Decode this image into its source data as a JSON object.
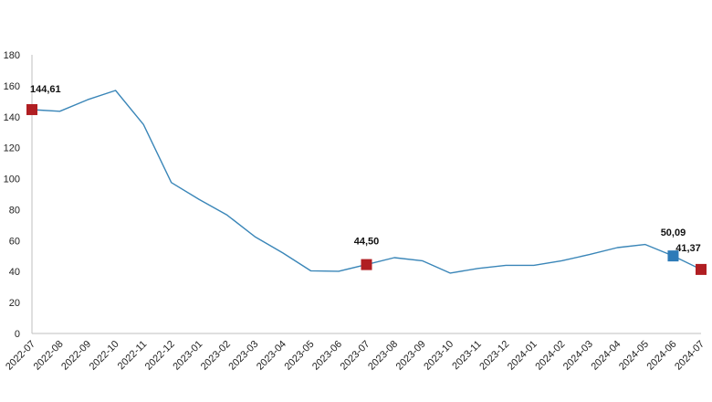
{
  "chart_data": {
    "type": "line",
    "title": "",
    "xlabel": "",
    "ylabel": "",
    "ylim": [
      0,
      180
    ],
    "yticks": [
      0,
      20,
      40,
      60,
      80,
      100,
      120,
      140,
      160,
      180
    ],
    "grid": false,
    "legend": "none",
    "categories": [
      "2022-07",
      "2022-08",
      "2022-09",
      "2022-10",
      "2022-11",
      "2022-12",
      "2023-01",
      "2023-02",
      "2023-03",
      "2023-04",
      "2023-05",
      "2023-06",
      "2023-07",
      "2023-08",
      "2023-09",
      "2023-10",
      "2023-11",
      "2023-12",
      "2024-01",
      "2024-02",
      "2024-03",
      "2024-04",
      "2024-05",
      "2024-06",
      "2024-07"
    ],
    "series": [
      {
        "values": [
          144.61,
          143.5,
          151.0,
          157.0,
          135.0,
          97.5,
          86.5,
          76.5,
          62.5,
          52.0,
          40.5,
          40.2,
          44.5,
          49.0,
          47.0,
          39.0,
          42.0,
          44.0,
          44.0,
          47.0,
          51.0,
          55.5,
          57.5,
          50.09,
          41.37
        ],
        "color": "#3a86b8"
      }
    ],
    "markers": [
      {
        "index": 0,
        "label": "144,61",
        "color": "#b01e22"
      },
      {
        "index": 12,
        "label": "44,50",
        "color": "#b01e22"
      },
      {
        "index": 23,
        "label": "50,09",
        "color": "#2e7bb8"
      },
      {
        "index": 24,
        "label": "41,37",
        "color": "#b01e22"
      }
    ]
  }
}
